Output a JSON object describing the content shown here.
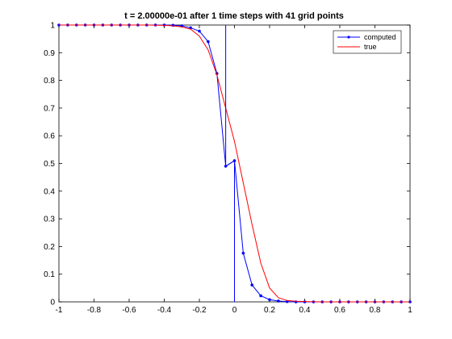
{
  "chart_data": {
    "type": "line",
    "title": "t = 2.00000e-01  after    1 time steps with    41 grid points",
    "xlabel": "",
    "ylabel": "",
    "xlim": [
      -1,
      1
    ],
    "ylim": [
      0,
      1
    ],
    "x_ticks": [
      "-1",
      "-0.8",
      "-0.6",
      "-0.4",
      "-0.2",
      "0",
      "0.2",
      "0.4",
      "0.6",
      "0.8",
      "1"
    ],
    "y_ticks": [
      "0",
      "0.1",
      "0.2",
      "0.3",
      "0.4",
      "0.5",
      "0.6",
      "0.7",
      "0.8",
      "0.9",
      "1"
    ],
    "grid": false,
    "legend_position": "top-right",
    "series": [
      {
        "name": "computed",
        "color": "#0000ff",
        "marker": "dot",
        "x": [
          -1,
          -0.95,
          -0.9,
          -0.85,
          -0.8,
          -0.75,
          -0.7,
          -0.65,
          -0.6,
          -0.55,
          -0.5,
          -0.45,
          -0.4,
          -0.35,
          -0.3,
          -0.25,
          -0.2,
          -0.15,
          -0.1,
          -0.05,
          0,
          0.05,
          0.1,
          0.15,
          0.2,
          0.25,
          0.3,
          0.35,
          0.4,
          0.45,
          0.5,
          0.55,
          0.6,
          0.65,
          0.7,
          0.75,
          0.8,
          0.85,
          0.9,
          0.95,
          1
        ],
        "y": [
          1,
          1,
          1,
          1,
          1,
          1,
          1,
          1,
          1,
          1,
          1,
          1,
          1,
          0.999,
          0.997,
          0.99,
          0.978,
          0.94,
          0.825,
          0.49,
          0.51,
          0.176,
          0.061,
          0.022,
          0.008,
          0.003,
          0.001,
          0,
          0,
          0,
          0,
          0,
          0,
          0,
          0,
          0,
          0,
          0,
          0,
          0,
          0
        ]
      },
      {
        "name": "true",
        "color": "#ff0000",
        "marker": "none",
        "x": [
          -1,
          -0.9,
          -0.8,
          -0.7,
          -0.6,
          -0.5,
          -0.4,
          -0.35,
          -0.3,
          -0.25,
          -0.2,
          -0.15,
          -0.1,
          -0.05,
          0,
          0.05,
          0.1,
          0.15,
          0.2,
          0.25,
          0.3,
          0.35,
          0.4,
          0.5,
          0.6,
          0.7,
          0.8,
          0.9,
          1
        ],
        "y": [
          1,
          1,
          1,
          1,
          1,
          1,
          0.999,
          0.997,
          0.993,
          0.985,
          0.96,
          0.91,
          0.82,
          0.7,
          0.58,
          0.43,
          0.28,
          0.14,
          0.05,
          0.015,
          0.005,
          0.002,
          0.001,
          0,
          0,
          0,
          0,
          0,
          0
        ]
      },
      {
        "name": "",
        "color": "#0000ff",
        "marker": "none",
        "x": [
          -0.05,
          -0.05,
          0,
          0
        ],
        "y": [
          1,
          0.49,
          0.51,
          0
        ]
      }
    ]
  }
}
